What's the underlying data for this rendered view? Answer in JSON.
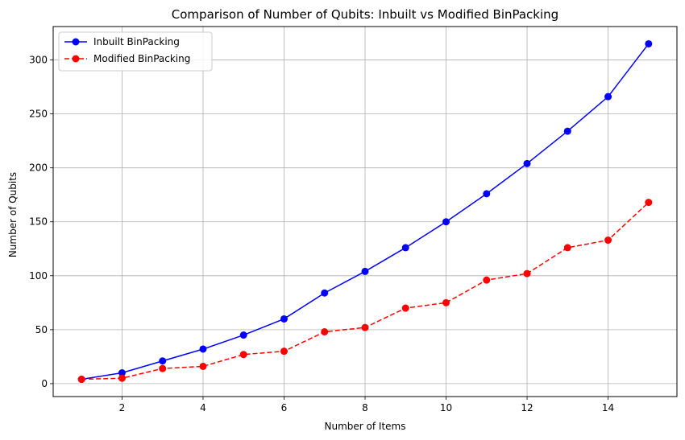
{
  "chart_data": {
    "type": "line",
    "title": "Comparison of Number of Qubits: Inbuilt vs Modified BinPacking",
    "xlabel": "Number of Items",
    "ylabel": "Number of Qubits",
    "x": [
      1,
      2,
      3,
      4,
      5,
      6,
      7,
      8,
      9,
      10,
      11,
      12,
      13,
      14,
      15
    ],
    "xlim": [
      0.3,
      15.7
    ],
    "ylim": [
      -12,
      331
    ],
    "xticks": [
      2,
      4,
      6,
      8,
      10,
      12,
      14
    ],
    "xtick_labels": [
      "2",
      "4",
      "6",
      "8",
      "10",
      "12",
      "14"
    ],
    "yticks": [
      0,
      50,
      100,
      150,
      200,
      250,
      300
    ],
    "ytick_labels": [
      "0",
      "50",
      "100",
      "150",
      "200",
      "250",
      "300"
    ],
    "grid": true,
    "legend_position": "top-left",
    "series": [
      {
        "name": "Inbuilt BinPacking",
        "values": [
          4,
          10,
          21,
          32,
          45,
          60,
          84,
          104,
          126,
          150,
          176,
          204,
          234,
          266,
          315
        ],
        "color": "#0000ff",
        "linestyle": "solid",
        "marker": "circle"
      },
      {
        "name": "Modified BinPacking",
        "values": [
          4,
          5,
          14,
          16,
          27,
          30,
          48,
          52,
          70,
          75,
          96,
          102,
          126,
          133,
          168
        ],
        "color": "#ff0000",
        "linestyle": "dashed",
        "marker": "circle"
      }
    ]
  }
}
